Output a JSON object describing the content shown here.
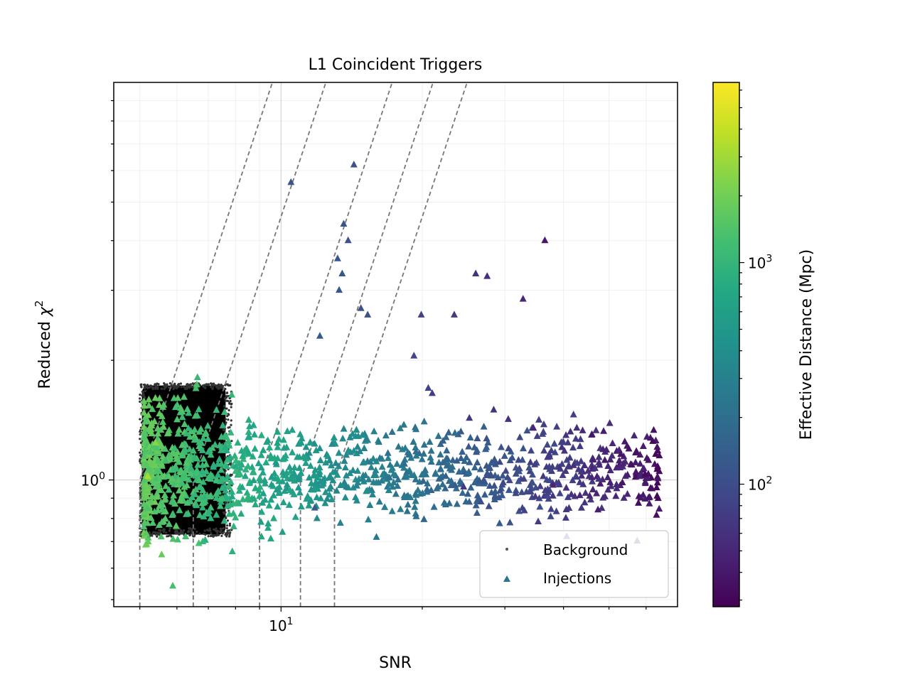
{
  "chart_data": {
    "type": "scatter",
    "title": "L1 Coincident Triggers",
    "xlabel": "SNR",
    "ylabel_text": "Reduced ",
    "ylabel_symbol": "χ",
    "ylabel_power": "2",
    "xscale": "log",
    "yscale": "log",
    "xlim": [
      4.4,
      70
    ],
    "ylim": [
      0.48,
      10
    ],
    "x_ticks": [
      {
        "value": 10,
        "base": "10",
        "exp": "1"
      }
    ],
    "y_ticks": [
      {
        "value": 1,
        "base": "10",
        "exp": "0"
      }
    ],
    "grid": "major and minor",
    "legend": {
      "location": "lower-right",
      "entries": [
        {
          "label": "Background",
          "marker": "dot",
          "color": "#555555"
        },
        {
          "label": "Injections",
          "marker": "triangle",
          "color": "#2c728e"
        }
      ]
    },
    "background_region": {
      "description_values": {
        "snr_min": 5.0,
        "snr_max": 7.7,
        "chisq_min": 0.72,
        "chisq_max": 1.75
      }
    },
    "threshold_curves": [
      {
        "snr_cutoff": 5.0,
        "chisq_start": 1.0
      },
      {
        "snr_cutoff": 6.5,
        "chisq_start": 1.0
      },
      {
        "snr_cutoff": 9.0,
        "chisq_start": 1.0
      },
      {
        "snr_cutoff": 11.0,
        "chisq_start": 1.0
      },
      {
        "snr_cutoff": 13.0,
        "chisq_start": 1.0
      }
    ],
    "injections": [
      {
        "snr": 10.5,
        "chisq": 5.6,
        "dist": 120
      },
      {
        "snr": 14.3,
        "chisq": 6.2,
        "dist": 110
      },
      {
        "snr": 13.6,
        "chisq": 4.4,
        "dist": 120
      },
      {
        "snr": 13.9,
        "chisq": 4.0,
        "dist": 115
      },
      {
        "snr": 13.2,
        "chisq": 3.6,
        "dist": 120
      },
      {
        "snr": 13.5,
        "chisq": 3.3,
        "dist": 120
      },
      {
        "snr": 13.3,
        "chisq": 3.0,
        "dist": 125
      },
      {
        "snr": 14.8,
        "chisq": 2.7,
        "dist": 110
      },
      {
        "snr": 15.3,
        "chisq": 2.6,
        "dist": 105
      },
      {
        "snr": 12.1,
        "chisq": 2.3,
        "dist": 130
      },
      {
        "snr": 19.9,
        "chisq": 2.6,
        "dist": 80
      },
      {
        "snr": 23.4,
        "chisq": 2.6,
        "dist": 70
      },
      {
        "snr": 26.0,
        "chisq": 3.3,
        "dist": 60
      },
      {
        "snr": 27.5,
        "chisq": 3.25,
        "dist": 58
      },
      {
        "snr": 32.8,
        "chisq": 2.85,
        "dist": 52
      },
      {
        "snr": 36.5,
        "chisq": 4.0,
        "dist": 40
      },
      {
        "snr": 19.2,
        "chisq": 2.05,
        "dist": 85
      },
      {
        "snr": 21.0,
        "chisq": 1.65,
        "dist": 75
      },
      {
        "snr": 20.6,
        "chisq": 1.7,
        "dist": 80
      },
      {
        "snr": 28.4,
        "chisq": 1.5,
        "dist": 62
      },
      {
        "snr": 25.2,
        "chisq": 1.43,
        "dist": 65
      },
      {
        "snr": 30.5,
        "chisq": 1.42,
        "dist": 58
      },
      {
        "snr": 34.5,
        "chisq": 1.35,
        "dist": 50
      },
      {
        "snr": 46.0,
        "chisq": 1.3,
        "dist": 40
      },
      {
        "snr": 62.0,
        "chisq": 1.25,
        "dist": 33
      },
      {
        "snr": 64.0,
        "chisq": 1.15,
        "dist": 32
      },
      {
        "snr": 63.5,
        "chisq": 1.08,
        "dist": 32
      },
      {
        "snr": 64.0,
        "chisq": 1.05,
        "dist": 31
      },
      {
        "snr": 57.0,
        "chisq": 1.17,
        "dist": 36
      },
      {
        "snr": 53.0,
        "chisq": 1.16,
        "dist": 38
      },
      {
        "snr": 49.0,
        "chisq": 1.12,
        "dist": 40
      },
      {
        "snr": 38.0,
        "chisq": 0.97,
        "dist": 50
      },
      {
        "snr": 24.5,
        "chisq": 0.96,
        "dist": 70
      },
      {
        "snr": 11.8,
        "chisq": 0.85,
        "dist": 130
      },
      {
        "snr": 5.4,
        "chisq": 1.24,
        "dist": 2500
      },
      {
        "snr": 5.3,
        "chisq": 1.1,
        "dist": 1800
      },
      {
        "snr": 5.2,
        "chisq": 1.02,
        "dist": 3200
      },
      {
        "snr": 5.35,
        "chisq": 0.98,
        "dist": 1500
      }
    ],
    "injection_cloud": {
      "description_values": {
        "count": 1300,
        "snr_range": [
          5.1,
          64
        ],
        "chisq_center": 1.05,
        "chisq_spread_factor": 1.16
      }
    },
    "colorbar": {
      "label": "Effective Distance (Mpc)",
      "scale": "log",
      "colormap": "viridis",
      "range": [
        28,
        6500
      ],
      "ticks": [
        {
          "value": 100,
          "base": "10",
          "exp": "2"
        },
        {
          "value": 1000,
          "base": "10",
          "exp": "3"
        }
      ]
    }
  }
}
